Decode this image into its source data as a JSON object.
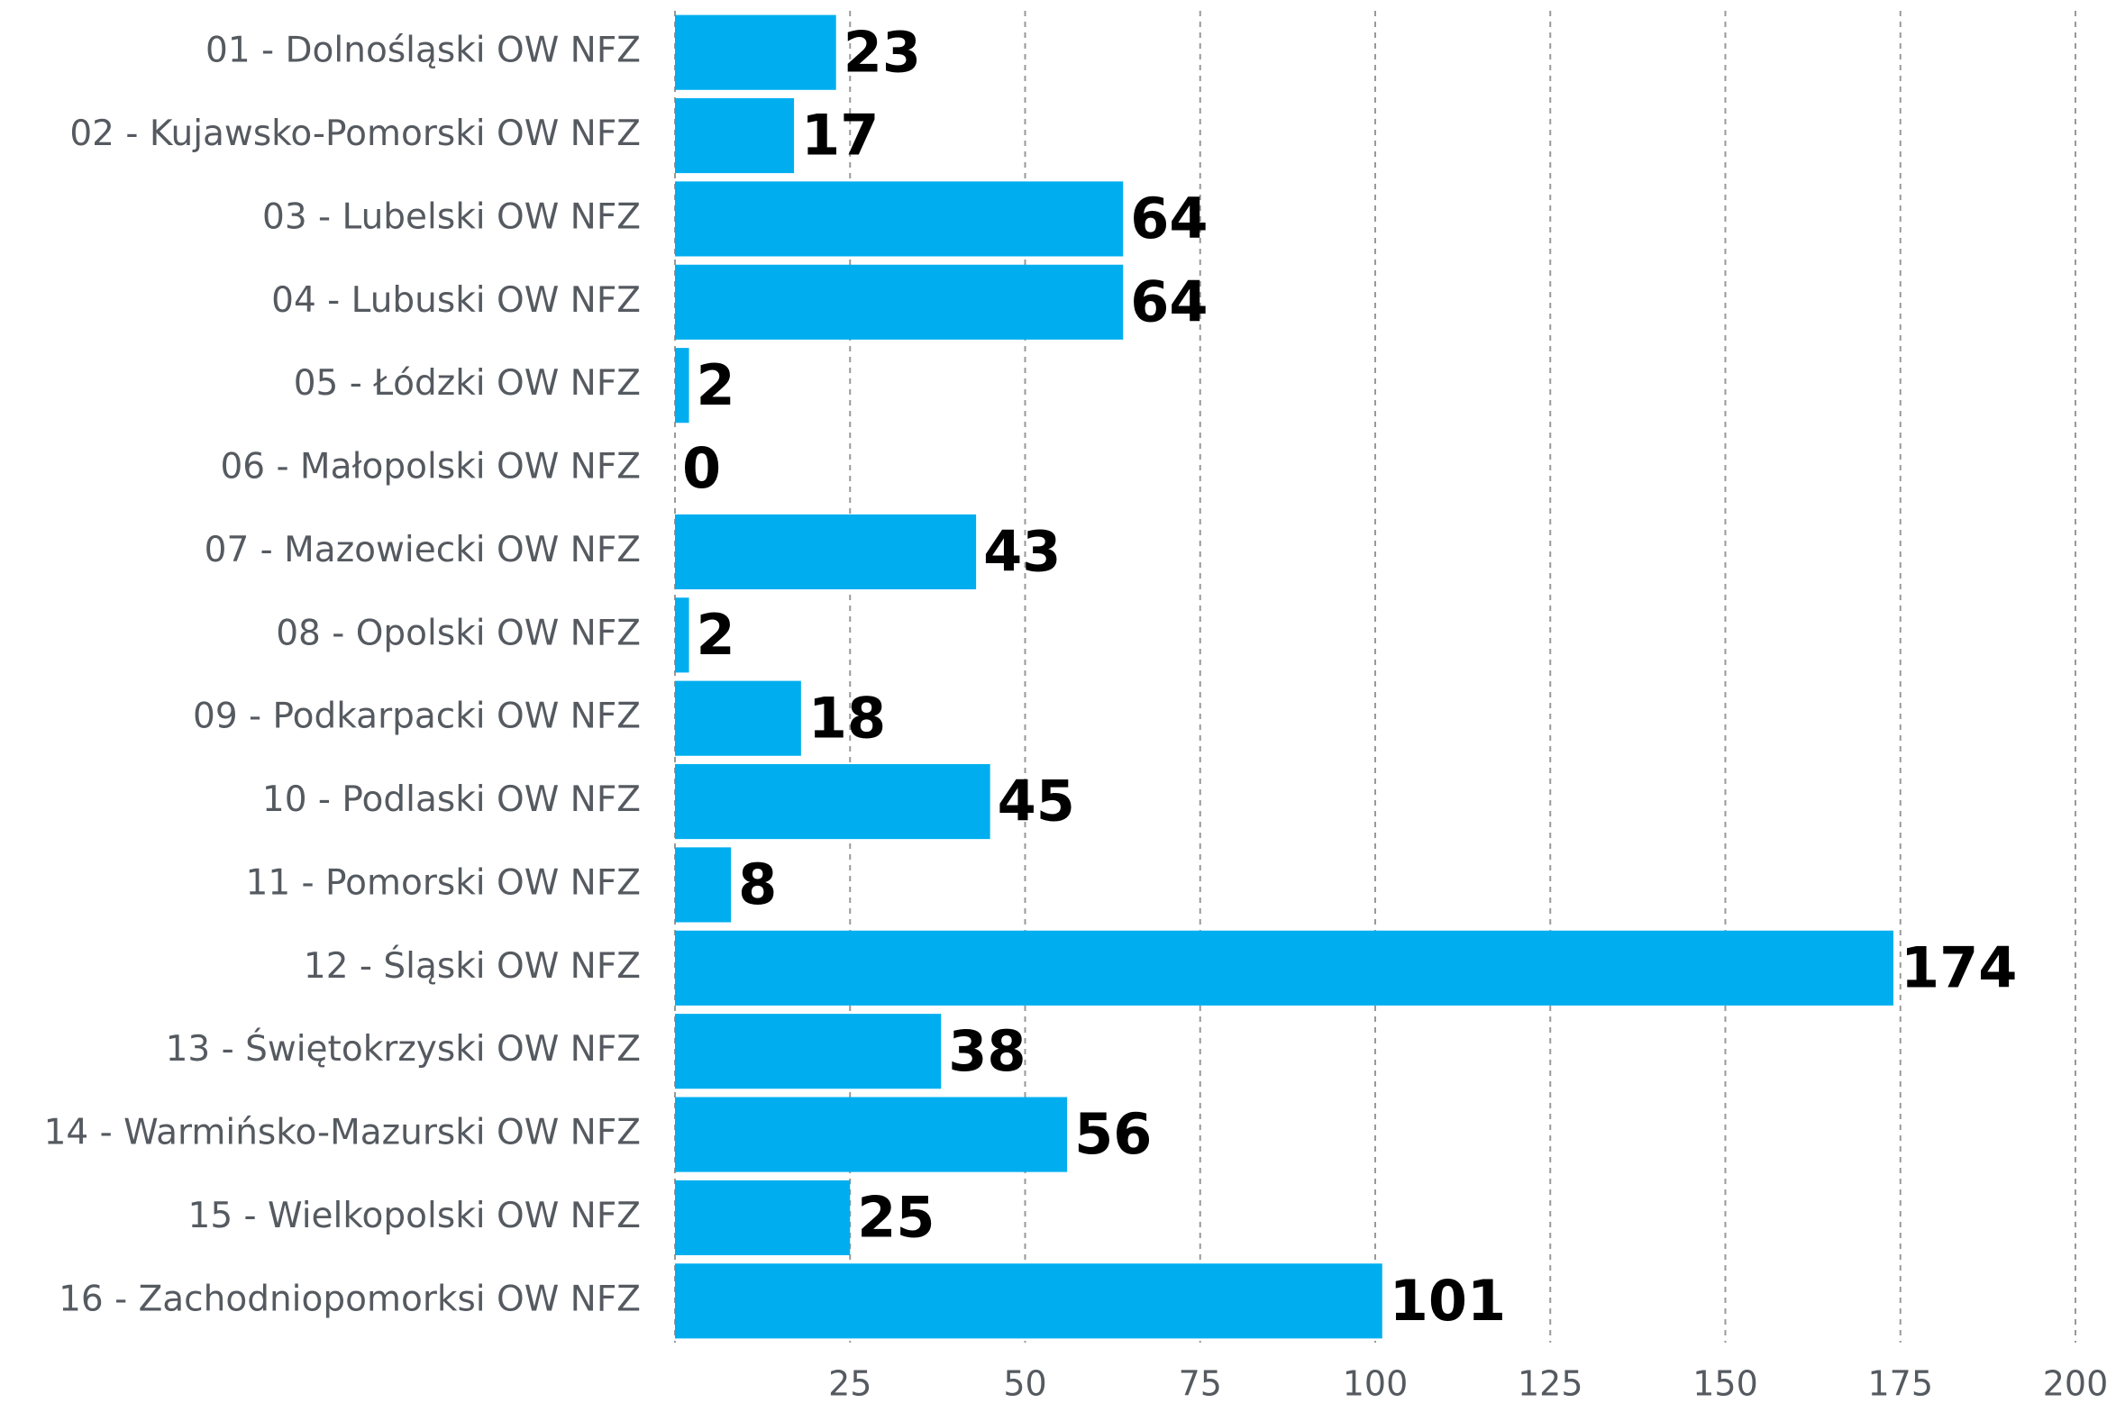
{
  "chart_data": {
    "type": "bar",
    "orientation": "horizontal",
    "categories": [
      "01 - Dolnośląski OW NFZ",
      "02 - Kujawsko-Pomorski OW NFZ",
      "03 - Lubelski OW NFZ",
      "04 - Lubuski OW NFZ",
      "05 - Łódzki OW NFZ",
      "06 - Małopolski OW NFZ",
      "07 - Mazowiecki OW NFZ",
      "08 - Opolski OW NFZ",
      "09 - Podkarpacki OW NFZ",
      "10 - Podlaski OW NFZ",
      "11 - Pomorski OW NFZ",
      "12 - Śląski OW NFZ",
      "13 - Świętokrzyski OW NFZ",
      "14 - Warmińsko-Mazurski OW NFZ",
      "15 - Wielkopolski OW NFZ",
      "16 - Zachodniopomorksi OW NFZ"
    ],
    "values": [
      23,
      17,
      64,
      64,
      2,
      0,
      43,
      2,
      18,
      45,
      8,
      174,
      38,
      56,
      25,
      101
    ],
    "color": "#00aeef",
    "xlim": [
      0,
      200
    ],
    "xticks": [
      25,
      50,
      75,
      100,
      125,
      150,
      175,
      200
    ],
    "grid": true
  }
}
